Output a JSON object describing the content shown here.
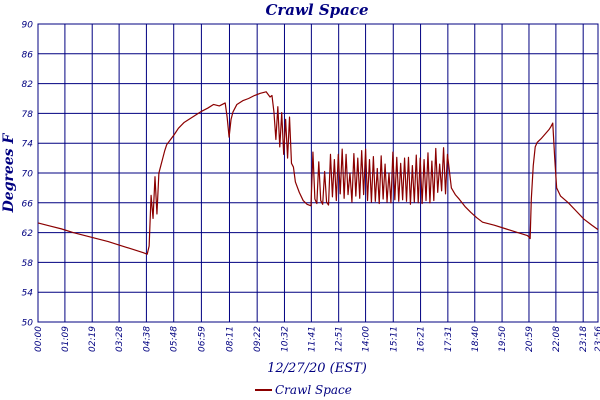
{
  "chart_data": {
    "type": "line",
    "title": "Crawl Space",
    "xlabel": "12/27/20 (EST)",
    "ylabel": "Degrees F",
    "ylim": [
      50,
      90
    ],
    "yticks": [
      50,
      54,
      58,
      62,
      66,
      70,
      74,
      78,
      82,
      86,
      90
    ],
    "xlim": [
      "00:00",
      "23:56"
    ],
    "xticks": [
      "00:00",
      "01:09",
      "02:19",
      "03:28",
      "04:38",
      "05:48",
      "06:59",
      "08:11",
      "09:22",
      "10:32",
      "11:41",
      "12:51",
      "14:00",
      "15:11",
      "16:21",
      "17:31",
      "18:40",
      "19:50",
      "20:59",
      "22:08",
      "23:18",
      "23:56"
    ],
    "grid": true,
    "legend": "bottom-center",
    "colors": {
      "series": "#8b0000",
      "text": "#000080",
      "grid": "#000080"
    },
    "series": [
      {
        "name": "Crawl Space",
        "x": [
          "00:00",
          "00:30",
          "01:00",
          "01:30",
          "02:00",
          "02:30",
          "03:00",
          "03:30",
          "04:00",
          "04:30",
          "04:40",
          "04:45",
          "04:50",
          "04:55",
          "05:00",
          "05:05",
          "05:10",
          "05:15",
          "05:20",
          "05:25",
          "05:30",
          "05:40",
          "05:50",
          "06:00",
          "06:15",
          "06:30",
          "06:45",
          "07:00",
          "07:15",
          "07:30",
          "07:45",
          "08:00",
          "08:05",
          "08:10",
          "08:15",
          "08:20",
          "08:30",
          "08:45",
          "09:00",
          "09:15",
          "09:30",
          "09:45",
          "09:55",
          "10:00",
          "10:05",
          "10:10",
          "10:15",
          "10:20",
          "10:25",
          "10:30",
          "10:35",
          "10:40",
          "10:45",
          "10:50",
          "10:55",
          "11:00",
          "11:10",
          "11:20",
          "11:30",
          "11:40",
          "11:45",
          "11:50",
          "11:55",
          "12:00",
          "12:05",
          "12:10",
          "12:15",
          "12:20",
          "12:25",
          "12:30",
          "12:35",
          "12:40",
          "12:45",
          "12:50",
          "12:55",
          "13:00",
          "13:05",
          "13:10",
          "13:15",
          "13:20",
          "13:25",
          "13:30",
          "13:35",
          "13:40",
          "13:45",
          "13:50",
          "13:55",
          "14:00",
          "14:05",
          "14:10",
          "14:15",
          "14:20",
          "14:25",
          "14:30",
          "14:35",
          "14:40",
          "14:45",
          "14:50",
          "14:55",
          "15:00",
          "15:05",
          "15:10",
          "15:15",
          "15:20",
          "15:25",
          "15:30",
          "15:35",
          "15:40",
          "15:45",
          "15:50",
          "15:55",
          "16:00",
          "16:05",
          "16:10",
          "16:15",
          "16:20",
          "16:25",
          "16:30",
          "16:35",
          "16:40",
          "16:45",
          "16:50",
          "16:55",
          "17:00",
          "17:05",
          "17:10",
          "17:15",
          "17:20",
          "17:25",
          "17:30",
          "17:40",
          "17:50",
          "18:00",
          "18:15",
          "18:30",
          "18:45",
          "19:00",
          "19:30",
          "20:00",
          "20:30",
          "20:55",
          "20:59",
          "21:02",
          "21:05",
          "21:10",
          "21:15",
          "21:20",
          "21:30",
          "21:40",
          "21:50",
          "21:55",
          "22:00",
          "22:05",
          "22:10",
          "22:20",
          "22:40",
          "23:00",
          "23:20",
          "23:40",
          "23:56"
        ],
        "values": [
          63.3,
          62.9,
          62.5,
          62.0,
          61.6,
          61.2,
          60.8,
          60.3,
          59.8,
          59.3,
          59.1,
          60.2,
          67.0,
          63.9,
          69.5,
          64.5,
          70.0,
          71.0,
          72.0,
          73.0,
          73.8,
          74.5,
          75.2,
          76.0,
          76.8,
          77.3,
          77.8,
          78.3,
          78.7,
          79.2,
          79.0,
          79.4,
          77.5,
          74.8,
          77.2,
          78.2,
          79.2,
          79.7,
          80.0,
          80.4,
          80.7,
          80.9,
          80.2,
          80.4,
          78.2,
          74.5,
          78.9,
          73.5,
          78.1,
          72.5,
          77.2,
          72.0,
          77.5,
          71.3,
          70.8,
          68.8,
          67.4,
          66.3,
          65.8,
          65.6,
          72.8,
          66.5,
          65.9,
          71.5,
          66.3,
          65.8,
          70.2,
          66.1,
          65.7,
          72.5,
          66.8,
          71.8,
          66.3,
          72.5,
          67.2,
          73.2,
          66.6,
          72.5,
          67.1,
          70.0,
          66.1,
          72.6,
          66.9,
          72.0,
          66.6,
          73.0,
          67.1,
          73.2,
          66.3,
          71.8,
          66.1,
          72.2,
          66.2,
          70.6,
          65.9,
          72.3,
          66.5,
          71.2,
          66.1,
          70.0,
          66.0,
          72.8,
          66.4,
          72.1,
          66.2,
          71.3,
          66.4,
          72.0,
          66.2,
          72.1,
          65.8,
          71.0,
          66.1,
          72.4,
          66.0,
          72.0,
          65.9,
          71.8,
          66.3,
          72.7,
          66.0,
          71.6,
          66.3,
          73.3,
          67.4,
          71.2,
          67.6,
          73.4,
          67.2,
          72.5,
          68.0,
          67.1,
          66.5,
          65.5,
          64.7,
          64.0,
          63.4,
          63.0,
          62.5,
          62.0,
          61.6,
          61.4,
          61.2,
          66.5,
          71.0,
          73.5,
          74.1,
          74.6,
          75.2,
          75.8,
          76.2,
          76.7,
          72.0,
          68.0,
          66.9,
          66.0,
          64.9,
          63.8,
          63.0,
          62.4
        ]
      }
    ]
  }
}
